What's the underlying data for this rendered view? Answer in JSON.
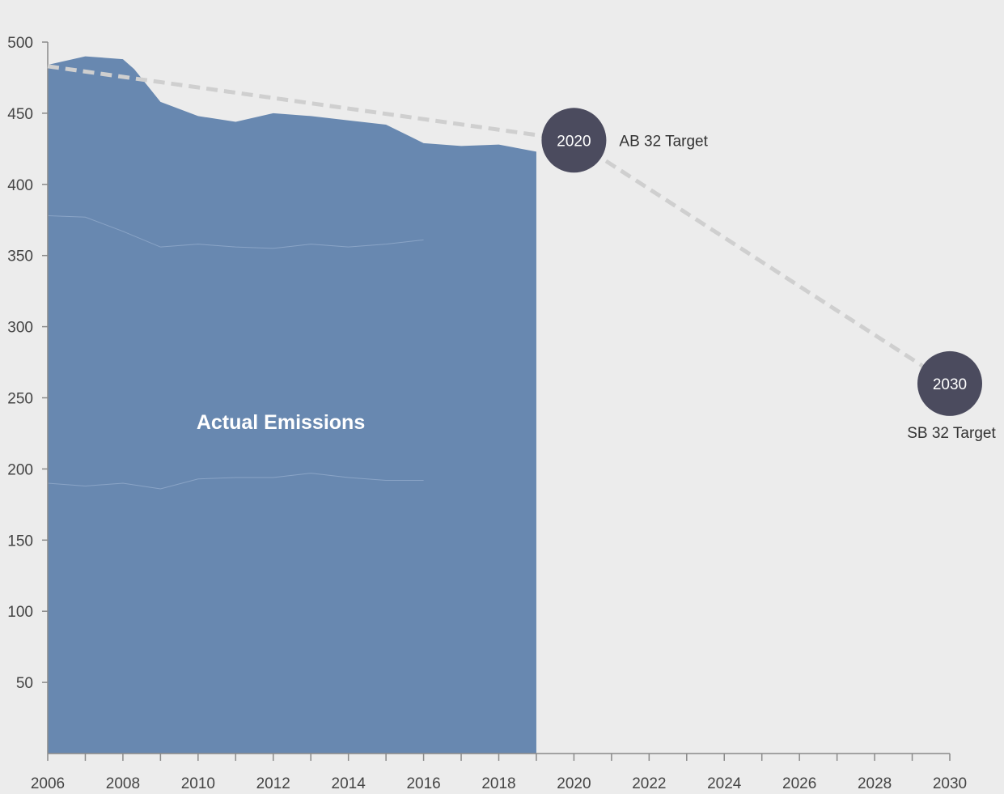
{
  "colors": {
    "background": "#ececec",
    "area": "#6888b0",
    "inner_lines": "#8aa4c6",
    "target_line": "#cfcfcf",
    "target_marker": "#4b4b5e",
    "axis": "#8a8a8a",
    "text": "#444444"
  },
  "chart_data": {
    "type": "area",
    "title": "",
    "xlabel": "",
    "ylabel": "",
    "xlim": [
      2006,
      2030
    ],
    "ylim": [
      0,
      500
    ],
    "grid": false,
    "x_ticks": [
      2006,
      2008,
      2010,
      2012,
      2014,
      2016,
      2018,
      2020,
      2022,
      2024,
      2026,
      2028,
      2030
    ],
    "y_ticks": [
      50,
      100,
      150,
      200,
      250,
      300,
      350,
      400,
      450,
      500
    ],
    "series": [
      {
        "type": "area",
        "label": "Actual Emissions",
        "x": [
          2006,
          2007,
          2008,
          2008.3,
          2009,
          2010,
          2011,
          2012,
          2013,
          2014,
          2015,
          2016,
          2017,
          2018,
          2019
        ],
        "values": [
          484,
          490,
          488,
          481,
          458,
          448,
          444,
          450,
          448,
          445,
          442,
          429,
          427,
          428,
          423
        ]
      },
      {
        "type": "line",
        "x": [
          2006,
          2007,
          2008,
          2009,
          2010,
          2011,
          2012,
          2013,
          2014,
          2015,
          2016
        ],
        "values": [
          378,
          377,
          367,
          356,
          358,
          356,
          355,
          358,
          356,
          358,
          361
        ]
      },
      {
        "type": "line",
        "x": [
          2006,
          2007,
          2008,
          2009,
          2010,
          2011,
          2012,
          2013,
          2014,
          2015,
          2016
        ],
        "values": [
          190,
          188,
          190,
          186,
          193,
          194,
          194,
          197,
          194,
          192,
          192
        ]
      },
      {
        "type": "dashed-line",
        "x": [
          2006,
          2020,
          2030
        ],
        "values": [
          483,
          431,
          260
        ]
      }
    ],
    "targets": [
      {
        "year": 2020,
        "value": 431,
        "year_label": "2020",
        "name": "AB 32 Target",
        "label_position": "right"
      },
      {
        "year": 2030,
        "value": 260,
        "year_label": "2030",
        "name": "SB 32 Target",
        "label_position": "below"
      }
    ]
  }
}
